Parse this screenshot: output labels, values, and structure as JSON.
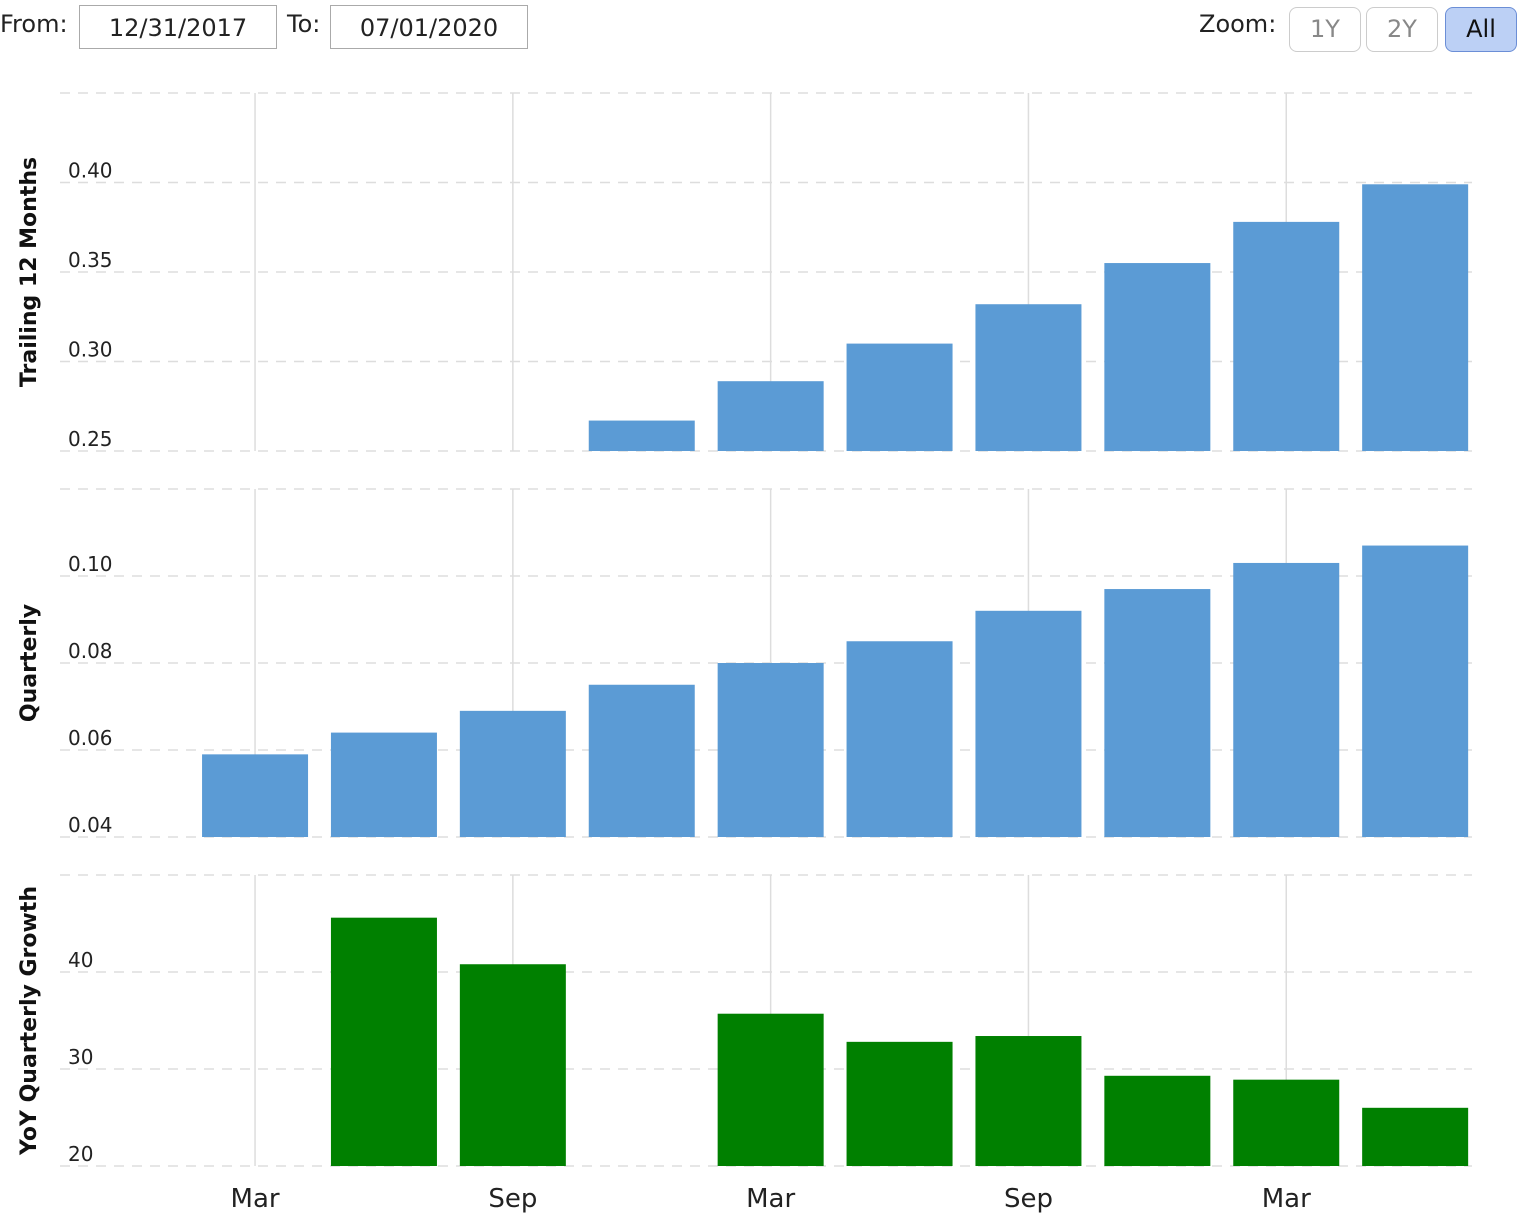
{
  "controls": {
    "from_label": "From:",
    "from_value": "12/31/2017",
    "to_label": "To:",
    "to_value": "07/01/2020",
    "zoom_label": "Zoom:",
    "zoom_buttons": [
      "1Y",
      "2Y",
      "All"
    ]
  },
  "chart_data": [
    {
      "type": "bar",
      "y_label": "Trailing 12 Months",
      "color": "#5b9bd5",
      "grid": true,
      "values": [
        null,
        null,
        null,
        0.267,
        0.289,
        0.31,
        0.332,
        0.355,
        0.378,
        0.399
      ],
      "ylim": [
        0.25,
        0.45
      ],
      "yticks": [
        {
          "value": 0.25,
          "label": "0.25"
        },
        {
          "value": 0.3,
          "label": "0.30"
        },
        {
          "value": 0.35,
          "label": "0.35"
        },
        {
          "value": 0.4,
          "label": "0.40"
        }
      ]
    },
    {
      "type": "bar",
      "y_label": "Quarterly",
      "color": "#5b9bd5",
      "grid": true,
      "values": [
        0.059,
        0.064,
        0.069,
        0.075,
        0.08,
        0.085,
        0.092,
        0.097,
        0.103,
        0.107
      ],
      "ylim": [
        0.04,
        0.12
      ],
      "yticks": [
        {
          "value": 0.04,
          "label": "0.04"
        },
        {
          "value": 0.06,
          "label": "0.06"
        },
        {
          "value": 0.08,
          "label": "0.08"
        },
        {
          "value": 0.1,
          "label": "0.10"
        }
      ]
    },
    {
      "type": "bar",
      "y_label": "YoY Quarterly Growth",
      "color": "#008000",
      "grid": true,
      "categories": [
        "Mar",
        null,
        "Sep",
        null,
        "Mar",
        null,
        "Sep",
        null,
        "Mar",
        null
      ],
      "values": [
        null,
        45.6,
        40.8,
        null,
        35.7,
        32.8,
        33.4,
        29.3,
        28.9,
        26.0
      ],
      "ylim": [
        20,
        50
      ],
      "yticks": [
        20,
        30,
        40
      ]
    }
  ]
}
